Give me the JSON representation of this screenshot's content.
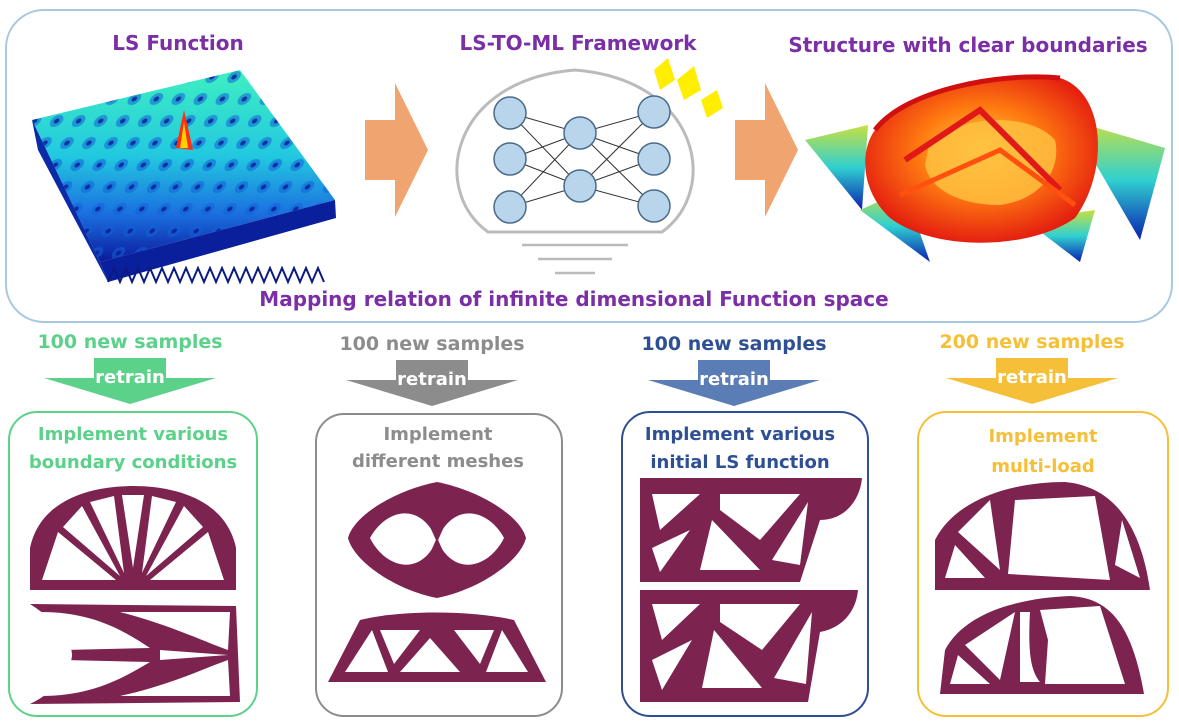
{
  "top_panel": {
    "ls_function_title": "LS Function",
    "framework_title": "LS-TO-ML Framework",
    "structure_title": "Structure with clear boundaries",
    "mapping_caption": "Mapping relation of infinite dimensional Function space"
  },
  "cases": [
    {
      "samples": "100 new samples",
      "retrain": "retrain",
      "line1": "Implement various",
      "line2": "boundary conditions",
      "color": "#5bd18a"
    },
    {
      "samples": "100 new samples",
      "retrain": "retrain",
      "line1": "Implement",
      "line2": "different meshes",
      "color": "#8c8c8c"
    },
    {
      "samples": "100 new samples",
      "retrain": "retrain",
      "line1": "Implement various",
      "line2": "initial LS function",
      "color": "#2e4f94"
    },
    {
      "samples": "200 new samples",
      "retrain": "retrain",
      "line1": "Implement",
      "line2": "multi-load",
      "color": "#f5c037"
    }
  ],
  "colors": {
    "title_purple": "#7b2fa6",
    "structure_fill": "#7d2350",
    "flow_arrow": "#f0a46f",
    "panel_border": "#a8c8e0",
    "node_fill": "#b9d5ec",
    "node_stroke": "#4a6a8a",
    "highlight_yellow": "#ffee00"
  }
}
